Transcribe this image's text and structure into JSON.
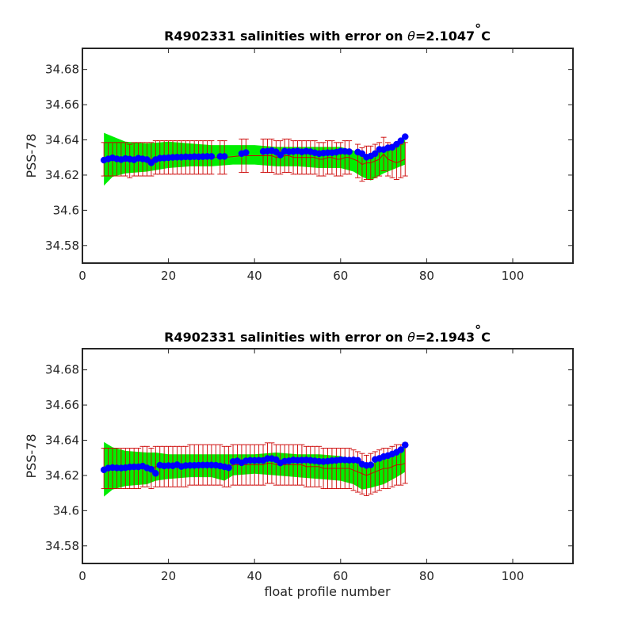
{
  "chart_data": [
    {
      "type": "scatter",
      "title_prefix": "R4902331 salinities with error on ",
      "title_symbol": "θ",
      "title_value": "=2.1047",
      "title_degree": "°",
      "title_unit": "C",
      "xlabel": "",
      "ylabel": "PSS-78",
      "xlim": [
        0,
        114
      ],
      "ylim": [
        34.57,
        34.692
      ],
      "xticks": [
        0,
        20,
        40,
        60,
        80,
        100
      ],
      "yticks": [
        34.58,
        34.6,
        34.62,
        34.64,
        34.66,
        34.68
      ],
      "ytick_labels": [
        "34.58",
        "34.6",
        "34.62",
        "34.64",
        "34.66",
        "34.68"
      ],
      "grid": false,
      "colors": {
        "points": "#0000ff",
        "band": "#00ee00",
        "error_bars": "#cc0000",
        "mean_line": "#cc0000"
      },
      "band_x": [
        5,
        7,
        10,
        15,
        20,
        25,
        30,
        35,
        40,
        45,
        50,
        55,
        60,
        63,
        65,
        67,
        70,
        73,
        75
      ],
      "band_upper": [
        34.644,
        34.642,
        34.639,
        34.638,
        34.639,
        34.638,
        34.637,
        34.637,
        34.637,
        34.636,
        34.636,
        34.636,
        34.636,
        34.634,
        34.632,
        34.631,
        34.636,
        34.638,
        34.64
      ],
      "band_lower": [
        34.614,
        34.619,
        34.621,
        34.622,
        34.624,
        34.625,
        34.625,
        34.626,
        34.626,
        34.625,
        34.625,
        34.624,
        34.624,
        34.622,
        34.619,
        34.617,
        34.621,
        34.624,
        34.626
      ],
      "points_x": [
        5,
        6,
        7,
        8,
        9,
        10,
        11,
        12,
        13,
        14,
        15,
        16,
        17,
        18,
        19,
        20,
        21,
        22,
        23,
        24,
        25,
        26,
        27,
        28,
        29,
        30,
        32,
        33,
        37,
        38,
        42,
        43,
        44,
        45,
        46,
        47,
        48,
        49,
        50,
        51,
        52,
        53,
        54,
        55,
        56,
        57,
        58,
        59,
        60,
        61,
        62,
        64,
        65,
        66,
        67,
        68,
        69,
        70,
        71,
        72,
        73,
        74,
        75
      ],
      "points_y": [
        34.6285,
        34.6292,
        34.6298,
        34.6292,
        34.6288,
        34.6294,
        34.6291,
        34.6287,
        34.6296,
        34.6292,
        34.6288,
        34.627,
        34.6288,
        34.6296,
        34.6297,
        34.6299,
        34.6301,
        34.6302,
        34.6302,
        34.6304,
        34.6303,
        34.6305,
        34.6304,
        34.6305,
        34.6306,
        34.6306,
        34.6306,
        34.6306,
        34.6322,
        34.6328,
        34.6334,
        34.6336,
        34.6339,
        34.6332,
        34.6314,
        34.6336,
        34.6333,
        34.6334,
        34.6337,
        34.6332,
        34.6336,
        34.6333,
        34.6327,
        34.6322,
        34.6325,
        34.6327,
        34.6327,
        34.633,
        34.6336,
        34.6335,
        34.6333,
        34.6331,
        34.6322,
        34.6302,
        34.6308,
        34.6322,
        34.6346,
        34.6345,
        34.6355,
        34.6358,
        34.6375,
        34.6395,
        34.6418
      ],
      "errorbar_x": [
        5,
        6,
        7,
        8,
        9,
        10,
        11,
        12,
        13,
        14,
        15,
        16,
        17,
        18,
        19,
        20,
        21,
        22,
        23,
        24,
        25,
        26,
        27,
        28,
        29,
        30,
        32,
        33,
        37,
        38,
        42,
        43,
        44,
        45,
        46,
        47,
        48,
        49,
        50,
        51,
        52,
        53,
        54,
        55,
        56,
        57,
        58,
        59,
        60,
        61,
        62,
        64,
        65,
        66,
        67,
        68,
        69,
        70,
        71,
        72,
        73,
        74,
        75
      ],
      "errorbar_mean": [
        34.629,
        34.629,
        34.629,
        34.629,
        34.629,
        34.629,
        34.628,
        34.629,
        34.629,
        34.629,
        34.629,
        34.629,
        34.63,
        34.63,
        34.63,
        34.63,
        34.63,
        34.63,
        34.63,
        34.63,
        34.63,
        34.63,
        34.63,
        34.63,
        34.63,
        34.63,
        34.63,
        34.63,
        34.631,
        34.631,
        34.631,
        34.631,
        34.631,
        34.63,
        34.63,
        34.631,
        34.631,
        34.63,
        34.63,
        34.63,
        34.63,
        34.63,
        34.63,
        34.629,
        34.629,
        34.63,
        34.63,
        34.629,
        34.629,
        34.63,
        34.63,
        34.628,
        34.626,
        34.627,
        34.627,
        34.628,
        34.629,
        34.632,
        34.629,
        34.628,
        34.627,
        34.628,
        34.629
      ],
      "errorbar_half": 0.0095
    },
    {
      "type": "scatter",
      "title_prefix": "R4902331 salinities with error on ",
      "title_symbol": "θ",
      "title_value": "=2.1943",
      "title_degree": "°",
      "title_unit": "C",
      "xlabel": "float profile number",
      "ylabel": "PSS-78",
      "xlim": [
        0,
        114
      ],
      "ylim": [
        34.57,
        34.692
      ],
      "xticks": [
        0,
        20,
        40,
        60,
        80,
        100
      ],
      "yticks": [
        34.58,
        34.6,
        34.62,
        34.64,
        34.66,
        34.68
      ],
      "ytick_labels": [
        "34.58",
        "34.6",
        "34.62",
        "34.64",
        "34.66",
        "34.68"
      ],
      "grid": false,
      "colors": {
        "points": "#0000ff",
        "band": "#00ee00",
        "error_bars": "#cc0000",
        "mean_line": "#cc0000"
      },
      "band_x": [
        5,
        7,
        10,
        15,
        17,
        20,
        25,
        30,
        33,
        35,
        40,
        45,
        50,
        55,
        60,
        63,
        65,
        67,
        70,
        73,
        75
      ],
      "band_upper": [
        34.639,
        34.636,
        34.634,
        34.633,
        34.633,
        34.632,
        34.632,
        34.632,
        34.632,
        34.632,
        34.632,
        34.633,
        34.632,
        34.632,
        34.631,
        34.629,
        34.626,
        34.626,
        34.631,
        34.634,
        34.636
      ],
      "band_lower": [
        34.608,
        34.612,
        34.614,
        34.615,
        34.617,
        34.618,
        34.619,
        34.619,
        34.617,
        34.62,
        34.621,
        34.62,
        34.619,
        34.618,
        34.617,
        34.615,
        34.612,
        34.613,
        34.615,
        34.619,
        34.622
      ],
      "points_x": [
        5,
        6,
        7,
        8,
        9,
        10,
        11,
        12,
        13,
        14,
        15,
        16,
        17,
        18,
        19,
        20,
        21,
        22,
        23,
        24,
        25,
        26,
        27,
        28,
        29,
        30,
        31,
        32,
        33,
        34,
        35,
        36,
        37,
        38,
        39,
        40,
        41,
        42,
        43,
        44,
        45,
        46,
        47,
        48,
        49,
        50,
        51,
        52,
        53,
        54,
        55,
        56,
        57,
        58,
        59,
        60,
        61,
        62,
        63,
        64,
        65,
        66,
        67,
        68,
        69,
        70,
        71,
        72,
        73,
        74,
        75
      ],
      "points_y": [
        34.6232,
        34.6242,
        34.6245,
        34.6243,
        34.6242,
        34.6244,
        34.6248,
        34.6249,
        34.6249,
        34.6253,
        34.6243,
        34.6235,
        34.6212,
        34.6258,
        34.6254,
        34.6256,
        34.6255,
        34.6261,
        34.6251,
        34.6256,
        34.6257,
        34.6257,
        34.6258,
        34.6259,
        34.6259,
        34.6259,
        34.6258,
        34.6254,
        34.6249,
        34.6244,
        34.6279,
        34.6283,
        34.6272,
        34.6283,
        34.6286,
        34.6285,
        34.6286,
        34.6285,
        34.6296,
        34.6296,
        34.629,
        34.6271,
        34.6281,
        34.6283,
        34.6288,
        34.6286,
        34.6287,
        34.6288,
        34.6286,
        34.6283,
        34.628,
        34.6279,
        34.6281,
        34.6284,
        34.6286,
        34.6289,
        34.6288,
        34.6287,
        34.6288,
        34.6286,
        34.6264,
        34.6257,
        34.626,
        34.6291,
        34.6297,
        34.6307,
        34.6313,
        34.6322,
        34.6332,
        34.6346,
        34.6373
      ],
      "errorbar_x": [
        5,
        6,
        7,
        8,
        9,
        10,
        11,
        12,
        13,
        14,
        15,
        16,
        17,
        18,
        19,
        20,
        21,
        22,
        23,
        24,
        25,
        26,
        27,
        28,
        29,
        30,
        31,
        32,
        33,
        34,
        35,
        36,
        37,
        38,
        39,
        40,
        41,
        42,
        43,
        44,
        45,
        46,
        47,
        48,
        49,
        50,
        51,
        52,
        53,
        54,
        55,
        56,
        57,
        58,
        59,
        60,
        61,
        62,
        63,
        64,
        65,
        66,
        67,
        68,
        69,
        70,
        71,
        72,
        73,
        74,
        75
      ],
      "errorbar_mean": [
        34.624,
        34.624,
        34.624,
        34.624,
        34.624,
        34.624,
        34.624,
        34.624,
        34.624,
        34.625,
        34.625,
        34.624,
        34.625,
        34.625,
        34.625,
        34.625,
        34.625,
        34.625,
        34.625,
        34.625,
        34.626,
        34.626,
        34.626,
        34.626,
        34.626,
        34.626,
        34.626,
        34.626,
        34.625,
        34.625,
        34.626,
        34.626,
        34.626,
        34.626,
        34.626,
        34.626,
        34.626,
        34.626,
        34.627,
        34.627,
        34.626,
        34.626,
        34.626,
        34.626,
        34.626,
        34.626,
        34.626,
        34.625,
        34.625,
        34.625,
        34.625,
        34.624,
        34.624,
        34.624,
        34.624,
        34.624,
        34.624,
        34.624,
        34.623,
        34.622,
        34.621,
        34.62,
        34.621,
        34.622,
        34.623,
        34.624,
        34.624,
        34.625,
        34.626,
        34.626,
        34.627
      ],
      "errorbar_half": 0.0115
    }
  ]
}
